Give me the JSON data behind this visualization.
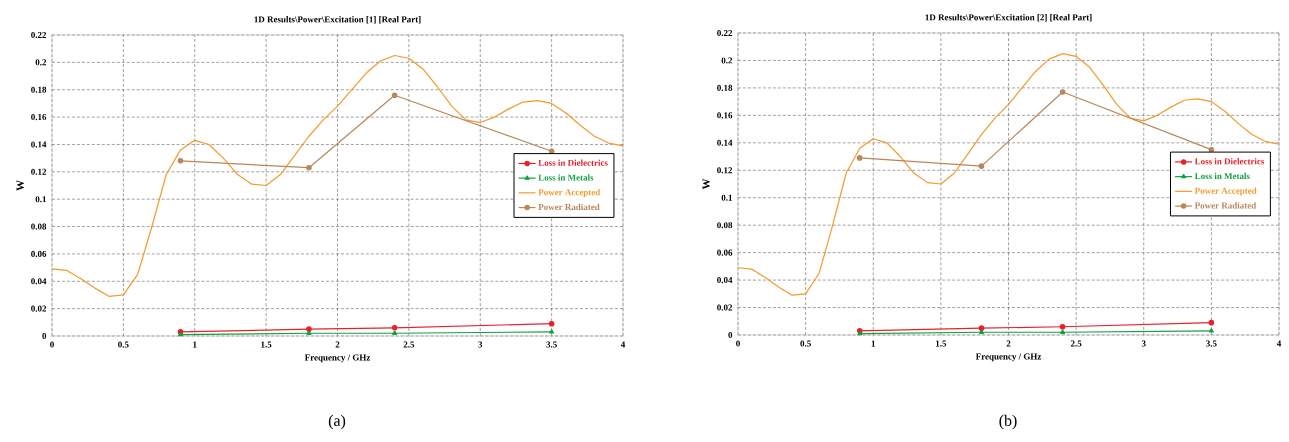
{
  "chart_data": [
    {
      "type": "line",
      "title": "1D Results\\Power\\Excitation [1] [Real Part]",
      "xlabel": "Frequency / GHz",
      "ylabel": "W",
      "annotations": [
        "(a)"
      ],
      "xlim": [
        0,
        4
      ],
      "ylim": [
        0,
        0.22
      ],
      "xticks": [
        0,
        0.5,
        1,
        1.5,
        2,
        2.5,
        3,
        3.5,
        4
      ],
      "yticks": [
        0,
        0.02,
        0.04,
        0.06,
        0.08,
        0.1,
        0.12,
        0.14,
        0.16,
        0.18,
        0.2,
        0.22
      ],
      "grid": true,
      "legend": "right",
      "line_style": "solid",
      "series": [
        {
          "name": "Loss in Dielectrics",
          "color": "#e8202a",
          "marker": "circle",
          "x": [
            0.9,
            1.8,
            2.4,
            3.5
          ],
          "values": [
            0.003,
            0.005,
            0.006,
            0.009
          ]
        },
        {
          "name": "Loss in Metals",
          "color": "#10a040",
          "marker": "triangle",
          "x": [
            0.9,
            1.8,
            2.4,
            3.5
          ],
          "values": [
            0.001,
            0.002,
            0.002,
            0.003
          ]
        },
        {
          "name": "Power Accepted",
          "color": "#f39a2b",
          "marker": "none",
          "x": [
            0,
            0.1,
            0.2,
            0.3,
            0.4,
            0.5,
            0.6,
            0.7,
            0.8,
            0.9,
            1.0,
            1.1,
            1.2,
            1.3,
            1.4,
            1.5,
            1.6,
            1.7,
            1.8,
            1.9,
            2.0,
            2.1,
            2.2,
            2.3,
            2.4,
            2.5,
            2.6,
            2.7,
            2.8,
            2.9,
            3.0,
            3.1,
            3.2,
            3.3,
            3.4,
            3.5,
            3.6,
            3.7,
            3.8,
            3.9,
            4.0
          ],
          "values": [
            0.049,
            0.048,
            0.042,
            0.035,
            0.029,
            0.03,
            0.045,
            0.08,
            0.118,
            0.136,
            0.143,
            0.14,
            0.13,
            0.118,
            0.111,
            0.11,
            0.118,
            0.132,
            0.146,
            0.158,
            0.168,
            0.18,
            0.192,
            0.201,
            0.205,
            0.203,
            0.195,
            0.182,
            0.168,
            0.158,
            0.156,
            0.16,
            0.166,
            0.171,
            0.172,
            0.17,
            0.163,
            0.154,
            0.146,
            0.141,
            0.139
          ]
        },
        {
          "name": "Power Radiated",
          "color": "#b8875a",
          "marker": "circle",
          "x": [
            0.9,
            1.8,
            2.4,
            3.5
          ],
          "values": [
            0.128,
            0.123,
            0.176,
            0.135
          ]
        }
      ]
    },
    {
      "type": "line",
      "title": "1D Results\\Power\\Excitation [2] [Real Part]",
      "xlabel": "Frequency / GHz",
      "ylabel": "W",
      "annotations": [
        "(b)"
      ],
      "xlim": [
        0,
        4
      ],
      "ylim": [
        0,
        0.22
      ],
      "xticks": [
        0,
        0.5,
        1,
        1.5,
        2,
        2.5,
        3,
        3.5,
        4
      ],
      "yticks": [
        0,
        0.02,
        0.04,
        0.06,
        0.08,
        0.1,
        0.12,
        0.14,
        0.16,
        0.18,
        0.2,
        0.22
      ],
      "grid": true,
      "legend": "right",
      "line_style": "solid",
      "series": [
        {
          "name": "Loss in Dielectrics",
          "color": "#e8202a",
          "marker": "circle",
          "x": [
            0.9,
            1.8,
            2.4,
            3.5
          ],
          "values": [
            0.003,
            0.005,
            0.006,
            0.009
          ]
        },
        {
          "name": "Loss in Metals",
          "color": "#10a040",
          "marker": "triangle",
          "x": [
            0.9,
            1.8,
            2.4,
            3.5
          ],
          "values": [
            0.001,
            0.002,
            0.002,
            0.003
          ]
        },
        {
          "name": "Power Accepted",
          "color": "#f39a2b",
          "marker": "none",
          "x": [
            0,
            0.1,
            0.2,
            0.3,
            0.4,
            0.5,
            0.6,
            0.7,
            0.8,
            0.9,
            1.0,
            1.1,
            1.2,
            1.3,
            1.4,
            1.5,
            1.6,
            1.7,
            1.8,
            1.9,
            2.0,
            2.1,
            2.2,
            2.3,
            2.4,
            2.5,
            2.6,
            2.7,
            2.8,
            2.9,
            3.0,
            3.1,
            3.2,
            3.3,
            3.4,
            3.5,
            3.6,
            3.7,
            3.8,
            3.9,
            4.0
          ],
          "values": [
            0.049,
            0.048,
            0.042,
            0.035,
            0.029,
            0.03,
            0.045,
            0.08,
            0.118,
            0.136,
            0.143,
            0.14,
            0.13,
            0.118,
            0.111,
            0.11,
            0.118,
            0.132,
            0.146,
            0.158,
            0.168,
            0.18,
            0.192,
            0.201,
            0.205,
            0.203,
            0.195,
            0.182,
            0.168,
            0.158,
            0.156,
            0.16,
            0.166,
            0.171,
            0.172,
            0.17,
            0.163,
            0.154,
            0.146,
            0.141,
            0.139
          ]
        },
        {
          "name": "Power Radiated",
          "color": "#b8875a",
          "marker": "circle",
          "x": [
            0.9,
            1.8,
            2.4,
            3.5
          ],
          "values": [
            0.129,
            0.123,
            0.177,
            0.135
          ]
        }
      ]
    }
  ]
}
